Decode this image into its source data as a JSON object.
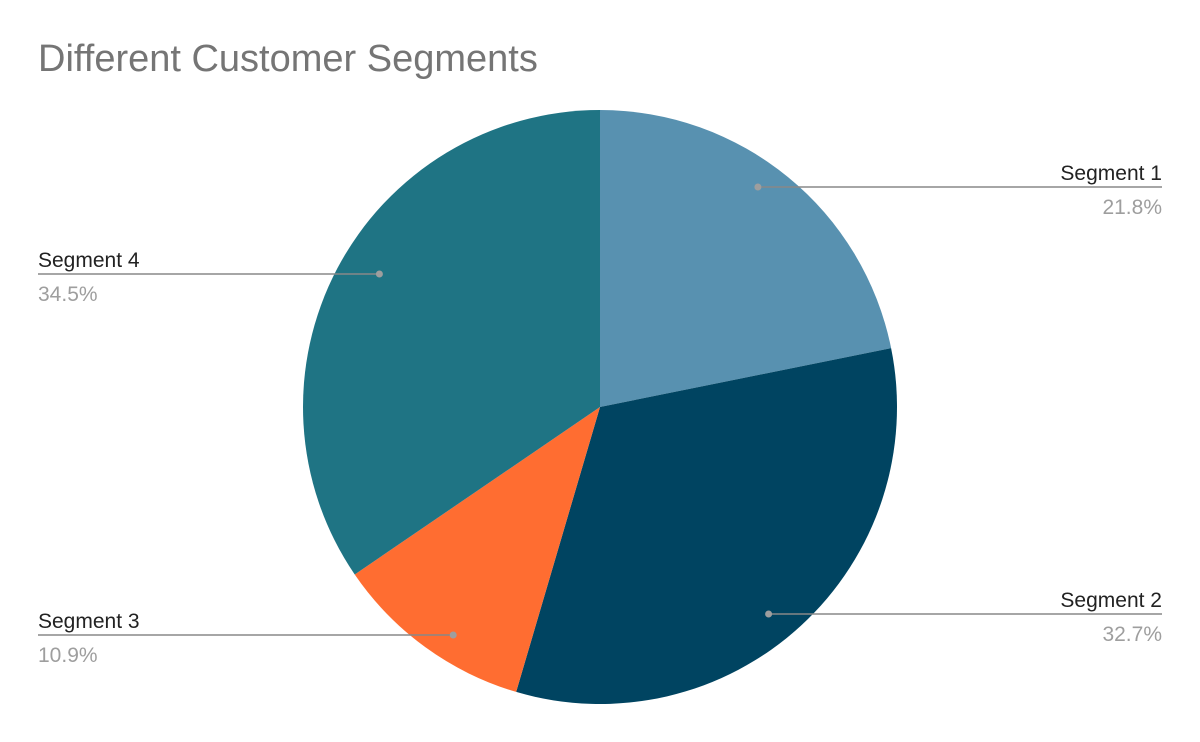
{
  "chart_data": {
    "type": "pie",
    "title": "Different Customer Segments",
    "slices": [
      {
        "label": "Segment 1",
        "value": 21.8,
        "value_label": "21.8%",
        "color": "#5891b0"
      },
      {
        "label": "Segment 2",
        "value": 32.7,
        "value_label": "32.7%",
        "color": "#004461"
      },
      {
        "label": "Segment 3",
        "value": 10.9,
        "value_label": "10.9%",
        "color": "#ff6d31"
      },
      {
        "label": "Segment 4",
        "value": 34.5,
        "value_label": "34.5%",
        "color": "#1f7484"
      }
    ],
    "start_angle": "12 o'clock",
    "direction": "clockwise",
    "legend": "none",
    "label_style": "leader-lines"
  }
}
